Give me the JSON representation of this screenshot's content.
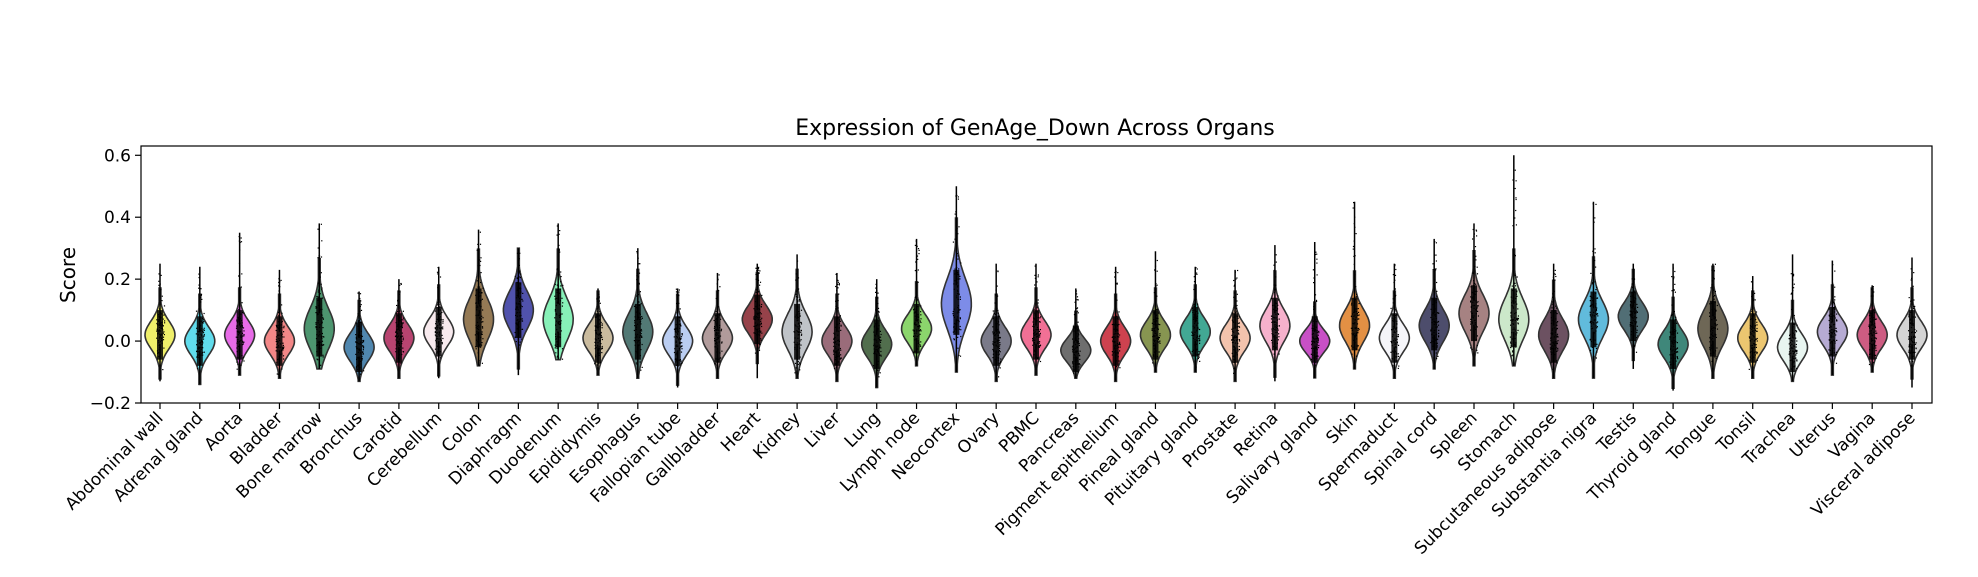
{
  "chart_data": {
    "type": "violin",
    "title": "Expression of GenAge_Down Across Organs",
    "xlabel": "",
    "ylabel": "Score",
    "ylim": [
      -0.2,
      0.63
    ],
    "yticks": [
      -0.2,
      0.0,
      0.2,
      0.4,
      0.6
    ],
    "ytick_labels": [
      "−0.2",
      "0.0",
      "0.2",
      "0.4",
      "0.6"
    ],
    "grid": false,
    "legend": "none",
    "categories": [
      "Abdominal wall",
      "Adrenal gland",
      "Aorta",
      "Bladder",
      "Bone marrow",
      "Bronchus",
      "Carotid",
      "Cerebellum",
      "Colon",
      "Diaphragm",
      "Duodenum",
      "Epididymis",
      "Esophagus",
      "Fallopian tube",
      "Gallbladder",
      "Heart",
      "Kidney",
      "Liver",
      "Lung",
      "Lymph node",
      "Neocortex",
      "Ovary",
      "PBMC",
      "Pancreas",
      "Pigment epithelium",
      "Pineal gland",
      "Pituitary gland",
      "Prostate",
      "Retina",
      "Salivary gland",
      "Skin",
      "Spermaduct",
      "Spinal cord",
      "Spleen",
      "Stomach",
      "Subcutaneous adipose",
      "Substantia nigra",
      "Testis",
      "Thyroid gland",
      "Tongue",
      "Tonsil",
      "Trachea",
      "Uterus",
      "Vagina",
      "Visceral adipose"
    ],
    "colors": [
      "#eded5a",
      "#4fd8ea",
      "#e45be4",
      "#f27a7a",
      "#3a8a5f",
      "#3d7aa6",
      "#b03060",
      "#f7e8ec",
      "#8a6c42",
      "#3d3fa3",
      "#7af0b0",
      "#c4b494",
      "#3f6a66",
      "#b3c8f0",
      "#a89090",
      "#8b2e36",
      "#b8bcc2",
      "#8f5c6c",
      "#3e5e3a",
      "#7ed05c",
      "#6f7fe6",
      "#6c6c7c",
      "#f0608a",
      "#5e5e5e",
      "#c82e3c",
      "#7a8a3e",
      "#2e9e88",
      "#f2bca4",
      "#f5a8c6",
      "#c23dc0",
      "#e08430",
      "#f4f4f8",
      "#3a3a5c",
      "#9c7474",
      "#c6e6c4",
      "#5c3e50",
      "#50b4d8",
      "#3e5e66",
      "#2a7a6c",
      "#5e5644",
      "#eac060",
      "#e6f4ee",
      "#aea2ce",
      "#c84a74",
      "#d0d0d0"
    ],
    "stats": {
      "median": [
        0.02,
        0.0,
        0.02,
        0.0,
        0.04,
        -0.02,
        0.01,
        0.03,
        0.07,
        0.1,
        0.07,
        0.01,
        0.03,
        0.0,
        0.01,
        0.07,
        0.03,
        0.0,
        -0.01,
        0.04,
        0.12,
        0.0,
        0.02,
        -0.03,
        0.0,
        0.02,
        0.03,
        0.01,
        0.05,
        0.0,
        0.05,
        0.01,
        0.05,
        0.09,
        0.07,
        0.02,
        0.07,
        0.08,
        -0.01,
        0.04,
        0.01,
        -0.02,
        0.03,
        0.02,
        0.02
      ],
      "min": [
        -0.13,
        -0.14,
        -0.11,
        -0.12,
        -0.09,
        -0.13,
        -0.12,
        -0.12,
        -0.08,
        -0.11,
        -0.06,
        -0.11,
        -0.12,
        -0.15,
        -0.12,
        -0.12,
        -0.12,
        -0.13,
        -0.15,
        -0.08,
        -0.1,
        -0.13,
        -0.11,
        -0.12,
        -0.13,
        -0.1,
        -0.1,
        -0.13,
        -0.13,
        -0.12,
        -0.09,
        -0.12,
        -0.09,
        -0.08,
        -0.08,
        -0.12,
        -0.12,
        -0.09,
        -0.16,
        -0.12,
        -0.12,
        -0.13,
        -0.11,
        -0.1,
        -0.15
      ],
      "max": [
        0.25,
        0.24,
        0.35,
        0.23,
        0.38,
        0.16,
        0.2,
        0.24,
        0.36,
        0.3,
        0.38,
        0.17,
        0.3,
        0.17,
        0.22,
        0.25,
        0.28,
        0.22,
        0.2,
        0.33,
        0.5,
        0.25,
        0.25,
        0.17,
        0.24,
        0.29,
        0.24,
        0.23,
        0.31,
        0.32,
        0.45,
        0.25,
        0.33,
        0.38,
        0.6,
        0.25,
        0.45,
        0.25,
        0.25,
        0.25,
        0.21,
        0.28,
        0.26,
        0.18,
        0.27
      ],
      "q1": [
        -0.01,
        -0.03,
        -0.01,
        -0.03,
        0.0,
        -0.05,
        -0.02,
        0.0,
        0.03,
        0.06,
        0.03,
        -0.02,
        -0.01,
        -0.03,
        -0.02,
        0.04,
        -0.01,
        -0.03,
        -0.04,
        0.01,
        0.07,
        -0.03,
        -0.01,
        -0.05,
        -0.03,
        -0.01,
        0.0,
        -0.02,
        0.02,
        -0.02,
        0.02,
        -0.02,
        0.02,
        0.05,
        0.03,
        -0.02,
        0.03,
        0.05,
        -0.04,
        0.0,
        -0.02,
        -0.05,
        0.0,
        -0.01,
        -0.01
      ],
      "q3": [
        0.05,
        0.03,
        0.05,
        0.03,
        0.09,
        0.01,
        0.04,
        0.06,
        0.12,
        0.14,
        0.12,
        0.04,
        0.07,
        0.03,
        0.04,
        0.1,
        0.07,
        0.03,
        0.02,
        0.07,
        0.18,
        0.03,
        0.05,
        0.0,
        0.03,
        0.05,
        0.06,
        0.04,
        0.09,
        0.03,
        0.09,
        0.04,
        0.09,
        0.13,
        0.12,
        0.05,
        0.11,
        0.11,
        0.02,
        0.08,
        0.04,
        0.01,
        0.06,
        0.05,
        0.05
      ]
    }
  }
}
